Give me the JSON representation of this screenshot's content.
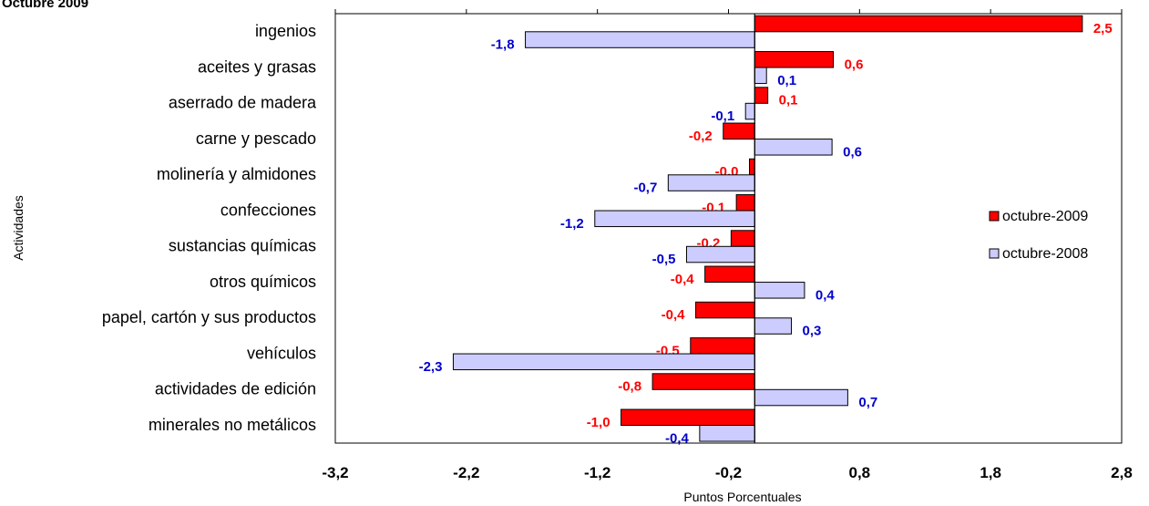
{
  "chart_data": {
    "type": "bar",
    "orientation": "horizontal",
    "title": "Octubre 2009",
    "xlabel": "Puntos Porcentuales",
    "ylabel": "Actividades",
    "xlim": [
      -3.2,
      2.8
    ],
    "xticks": [
      -3.2,
      -2.2,
      -1.2,
      -0.2,
      0.8,
      1.8,
      2.8
    ],
    "xtick_labels": [
      "-3,2",
      "-2,2",
      "-1,2",
      "-0,2",
      "0,8",
      "1,8",
      "2,8"
    ],
    "categories": [
      "ingenios",
      "aceites y grasas",
      "aserrado de madera",
      "carne y pescado",
      "molinería y almidones",
      "confecciones",
      "sustancias químicas ",
      "otros químicos",
      "papel, cartón y sus productos",
      "vehículos ",
      "actividades de edición",
      "minerales no metálicos"
    ],
    "series": [
      {
        "name": "octubre-2009",
        "color": "#ff0000",
        "label_color": "#ff0000",
        "values": [
          2.5,
          0.6,
          0.1,
          -0.24,
          -0.04,
          -0.14,
          -0.18,
          -0.38,
          -0.45,
          -0.49,
          -0.78,
          -1.02
        ],
        "labels": [
          "2,5",
          "0,6",
          "0,1",
          "-0,2",
          "-0,0",
          "-0,1",
          "-0,2",
          "-0,4",
          "-0,4",
          "-0,5",
          "-0,8",
          "-1,0"
        ]
      },
      {
        "name": "octubre-2008",
        "color": "#ccccff",
        "label_color": "#0000cc",
        "values": [
          -1.75,
          0.09,
          -0.07,
          0.59,
          -0.66,
          -1.22,
          -0.52,
          0.38,
          0.28,
          -2.3,
          0.71,
          -0.42
        ],
        "labels": [
          "-1,8",
          "0,1",
          "-0,1",
          "0,6",
          "-0,7",
          "-1,2",
          "-0,5",
          "0,4",
          "0,3",
          "-2,3",
          "0,7",
          "-0,4"
        ]
      }
    ],
    "legend_position": "right",
    "grid": false
  }
}
